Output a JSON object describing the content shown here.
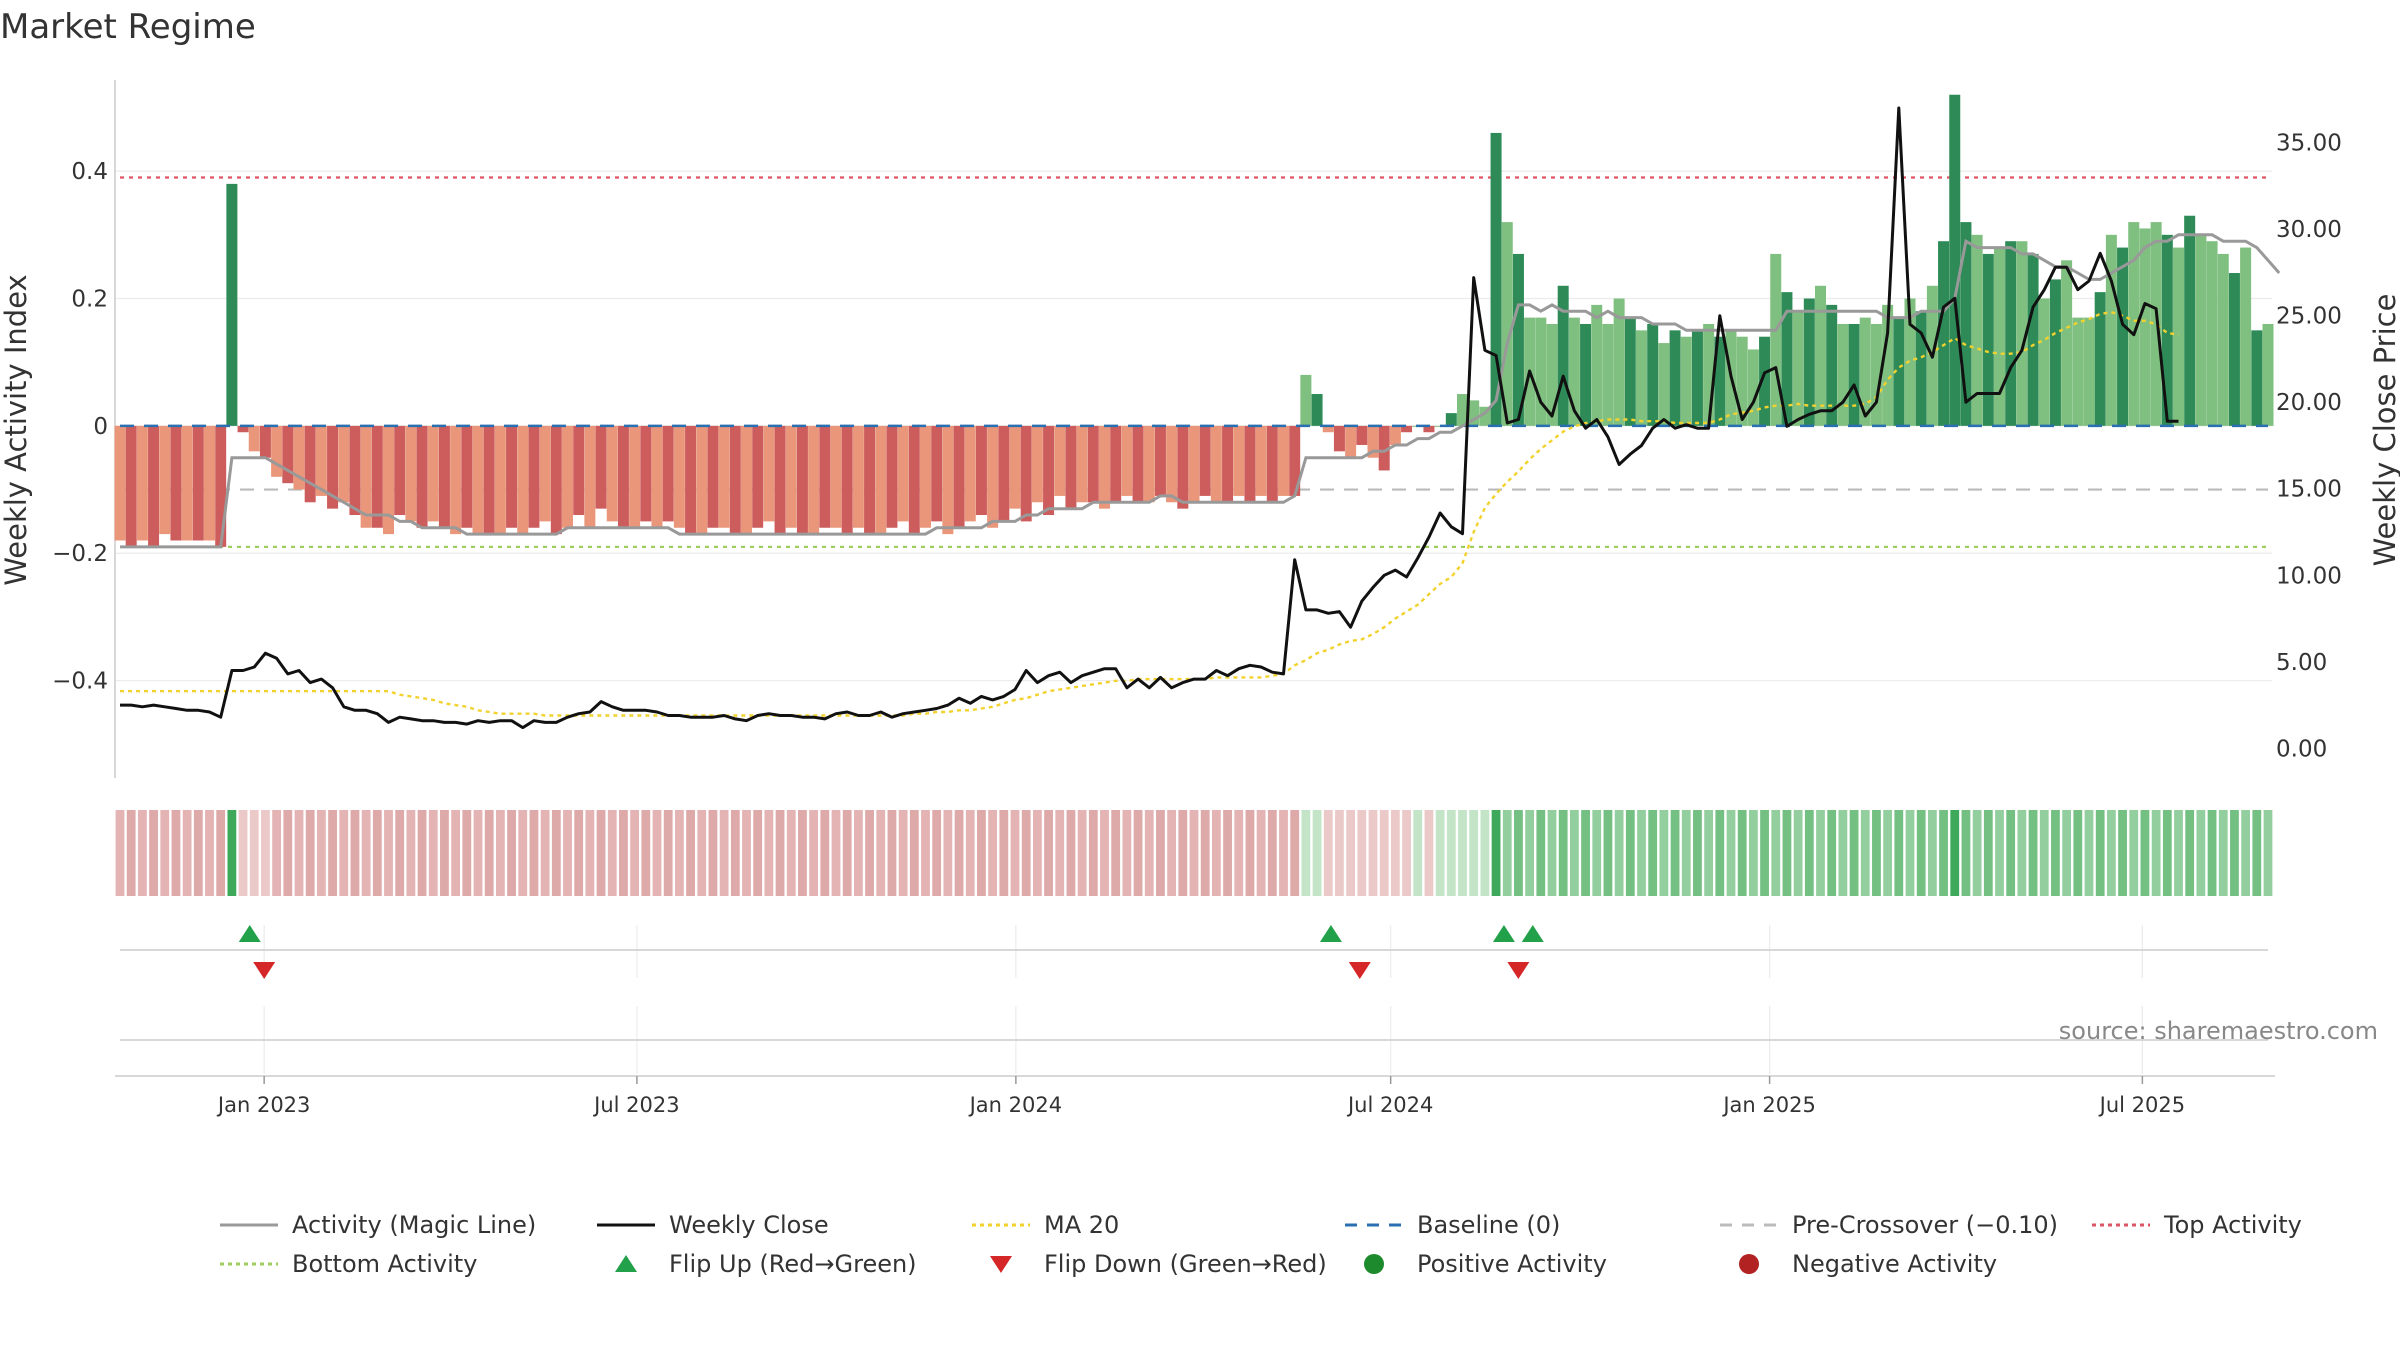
{
  "chart_data": {
    "type": "bar",
    "title": "Market Regime",
    "y_left_label": "Weekly Activity Index",
    "y_right_label": "Weekly Close Price",
    "y_left_ticks": [
      0.4,
      0.2,
      0,
      -0.2,
      -0.4
    ],
    "y_left_tick_labels": [
      "0.4",
      "0.2",
      "0",
      "−0.2",
      "−0.4"
    ],
    "y_left_range": [
      -0.52,
      0.54
    ],
    "y_right_ticks": [
      0,
      5,
      10,
      15,
      20,
      25,
      30,
      35
    ],
    "y_right_tick_labels": [
      "0.00",
      "5.00",
      "10.00",
      "15.00",
      "20.00",
      "25.00",
      "30.00",
      "35.00"
    ],
    "y_right_range": [
      -0.5,
      38.5
    ],
    "x_ticks": [
      "Jan 2023",
      "Jul 2023",
      "Jan 2024",
      "Jul 2024",
      "Jan 2025",
      "Jul 2025"
    ],
    "x_tick_dates": [
      "2023-01-01",
      "2023-07-01",
      "2024-01-01",
      "2024-07-01",
      "2025-01-01",
      "2025-07-01"
    ],
    "weekly_dates": {
      "first": "2022-10-23",
      "last": "2025-08-31",
      "step": "weekly"
    },
    "reference_lines": {
      "baseline": 0,
      "pre_crossover": -0.1,
      "top_activity": 0.39,
      "bottom_activity": -0.19
    },
    "activity_index": [
      -0.18,
      -0.19,
      -0.18,
      -0.19,
      -0.17,
      -0.18,
      -0.18,
      -0.18,
      -0.18,
      -0.19,
      0.38,
      -0.01,
      -0.04,
      -0.05,
      -0.08,
      -0.09,
      -0.1,
      -0.12,
      -0.11,
      -0.13,
      -0.12,
      -0.14,
      -0.16,
      -0.16,
      -0.17,
      -0.14,
      -0.15,
      -0.16,
      -0.15,
      -0.16,
      -0.17,
      -0.16,
      -0.17,
      -0.17,
      -0.17,
      -0.16,
      -0.17,
      -0.16,
      -0.15,
      -0.17,
      -0.16,
      -0.14,
      -0.16,
      -0.13,
      -0.15,
      -0.16,
      -0.16,
      -0.15,
      -0.16,
      -0.15,
      -0.16,
      -0.17,
      -0.17,
      -0.16,
      -0.16,
      -0.17,
      -0.17,
      -0.16,
      -0.15,
      -0.17,
      -0.16,
      -0.17,
      -0.17,
      -0.16,
      -0.16,
      -0.17,
      -0.16,
      -0.17,
      -0.17,
      -0.16,
      -0.15,
      -0.17,
      -0.16,
      -0.15,
      -0.17,
      -0.16,
      -0.15,
      -0.14,
      -0.16,
      -0.15,
      -0.13,
      -0.15,
      -0.12,
      -0.14,
      -0.11,
      -0.13,
      -0.12,
      -0.12,
      -0.13,
      -0.12,
      -0.11,
      -0.12,
      -0.12,
      -0.11,
      -0.12,
      -0.13,
      -0.12,
      -0.11,
      -0.12,
      -0.12,
      -0.11,
      -0.12,
      -0.11,
      -0.12,
      -0.11,
      -0.11,
      0.08,
      0.05,
      -0.01,
      -0.04,
      -0.05,
      -0.03,
      -0.05,
      -0.07,
      -0.03,
      -0.01,
      0.0,
      -0.01,
      0.0,
      0.02,
      0.05,
      0.04,
      0.03,
      0.46,
      0.32,
      0.27,
      0.17,
      0.17,
      0.16,
      0.22,
      0.17,
      0.16,
      0.19,
      0.16,
      0.2,
      0.17,
      0.15,
      0.16,
      0.13,
      0.15,
      0.14,
      0.15,
      0.16,
      0.14,
      0.15,
      0.14,
      0.12,
      0.14,
      0.27,
      0.21,
      0.18,
      0.2,
      0.22,
      0.19,
      0.16,
      0.16,
      0.17,
      0.16,
      0.19,
      0.17,
      0.2,
      0.18,
      0.22,
      0.29,
      0.52,
      0.32,
      0.3,
      0.27,
      0.28,
      0.29,
      0.29,
      0.27,
      0.2,
      0.23,
      0.26,
      0.17,
      0.17,
      0.21,
      0.3,
      0.28,
      0.32,
      0.31,
      0.32,
      0.3,
      0.28,
      0.33,
      0.3,
      0.29,
      0.27,
      0.24,
      0.28,
      0.15,
      0.16
    ],
    "magic_line": [
      -0.19,
      -0.19,
      -0.19,
      -0.19,
      -0.19,
      -0.19,
      -0.19,
      -0.19,
      -0.19,
      -0.19,
      -0.05,
      -0.05,
      -0.05,
      -0.05,
      -0.06,
      -0.07,
      -0.08,
      -0.09,
      -0.1,
      -0.11,
      -0.12,
      -0.13,
      -0.14,
      -0.14,
      -0.14,
      -0.15,
      -0.15,
      -0.16,
      -0.16,
      -0.16,
      -0.16,
      -0.17,
      -0.17,
      -0.17,
      -0.17,
      -0.17,
      -0.17,
      -0.17,
      -0.17,
      -0.17,
      -0.16,
      -0.16,
      -0.16,
      -0.16,
      -0.16,
      -0.16,
      -0.16,
      -0.16,
      -0.16,
      -0.16,
      -0.17,
      -0.17,
      -0.17,
      -0.17,
      -0.17,
      -0.17,
      -0.17,
      -0.17,
      -0.17,
      -0.17,
      -0.17,
      -0.17,
      -0.17,
      -0.17,
      -0.17,
      -0.17,
      -0.17,
      -0.17,
      -0.17,
      -0.17,
      -0.17,
      -0.17,
      -0.17,
      -0.16,
      -0.16,
      -0.16,
      -0.16,
      -0.16,
      -0.15,
      -0.15,
      -0.15,
      -0.14,
      -0.14,
      -0.13,
      -0.13,
      -0.13,
      -0.13,
      -0.12,
      -0.12,
      -0.12,
      -0.12,
      -0.12,
      -0.12,
      -0.11,
      -0.11,
      -0.12,
      -0.12,
      -0.12,
      -0.12,
      -0.12,
      -0.12,
      -0.12,
      -0.12,
      -0.12,
      -0.12,
      -0.11,
      -0.05,
      -0.05,
      -0.05,
      -0.05,
      -0.05,
      -0.05,
      -0.04,
      -0.04,
      -0.03,
      -0.03,
      -0.02,
      -0.02,
      -0.01,
      -0.01,
      0.0,
      0.01,
      0.02,
      0.04,
      0.13,
      0.19,
      0.19,
      0.18,
      0.19,
      0.18,
      0.18,
      0.18,
      0.17,
      0.18,
      0.17,
      0.17,
      0.17,
      0.16,
      0.16,
      0.16,
      0.15,
      0.15,
      0.15,
      0.15,
      0.15,
      0.15,
      0.15,
      0.15,
      0.15,
      0.18,
      0.18,
      0.18,
      0.18,
      0.18,
      0.18,
      0.18,
      0.18,
      0.18,
      0.17,
      0.17,
      0.17,
      0.18,
      0.18,
      0.18,
      0.2,
      0.29,
      0.28,
      0.28,
      0.28,
      0.28,
      0.27,
      0.27,
      0.26,
      0.25,
      0.25,
      0.24,
      0.23,
      0.23,
      0.24,
      0.25,
      0.26,
      0.28,
      0.29,
      0.29,
      0.3,
      0.3,
      0.3,
      0.3,
      0.29,
      0.29,
      0.29,
      0.28,
      0.26,
      0.24
    ],
    "weekly_close": [
      2.5,
      2.5,
      2.4,
      2.5,
      2.4,
      2.3,
      2.2,
      2.2,
      2.1,
      1.8,
      4.5,
      4.5,
      4.7,
      5.5,
      5.2,
      4.3,
      4.5,
      3.8,
      4.0,
      3.5,
      2.4,
      2.2,
      2.2,
      2.0,
      1.5,
      1.8,
      1.7,
      1.6,
      1.6,
      1.5,
      1.5,
      1.4,
      1.6,
      1.5,
      1.6,
      1.6,
      1.2,
      1.6,
      1.5,
      1.5,
      1.8,
      2.0,
      2.1,
      2.7,
      2.4,
      2.2,
      2.2,
      2.2,
      2.1,
      1.9,
      1.9,
      1.8,
      1.8,
      1.8,
      1.9,
      1.7,
      1.6,
      1.9,
      2.0,
      1.9,
      1.9,
      1.8,
      1.8,
      1.7,
      2.0,
      2.1,
      1.9,
      1.9,
      2.1,
      1.8,
      2.0,
      2.1,
      2.2,
      2.3,
      2.5,
      2.9,
      2.6,
      3.0,
      2.8,
      3.0,
      3.4,
      4.5,
      3.8,
      4.2,
      4.4,
      3.8,
      4.2,
      4.4,
      4.6,
      4.6,
      3.5,
      4.0,
      3.5,
      4.1,
      3.5,
      3.8,
      4.0,
      4.0,
      4.5,
      4.2,
      4.6,
      4.8,
      4.7,
      4.4,
      4.3,
      10.9,
      8.0,
      8.0,
      7.8,
      7.9,
      7.0,
      8.5,
      9.3,
      10.0,
      10.3,
      9.9,
      11.0,
      12.2,
      13.6,
      12.8,
      12.4,
      27.2,
      23.0,
      22.7,
      18.8,
      19.0,
      21.8,
      20.0,
      19.2,
      21.5,
      19.5,
      18.5,
      19.0,
      18.0,
      16.4,
      17.0,
      17.5,
      18.5,
      19.0,
      18.5,
      18.7,
      18.5,
      18.5,
      25.0,
      21.5,
      19.0,
      20.0,
      21.7,
      22.0,
      18.6,
      19.0,
      19.3,
      19.5,
      19.5,
      20.0,
      21.0,
      19.2,
      20.0,
      24.0,
      37.0,
      24.5,
      24.0,
      22.6,
      25.5,
      26.0,
      20.0,
      20.5,
      20.5,
      20.5,
      22.0,
      23.0,
      25.5,
      26.5,
      27.8,
      27.8,
      26.5,
      27.0,
      28.6,
      27.0,
      24.5,
      23.9,
      25.7,
      25.4,
      18.9,
      18.9
    ],
    "ma20": [
      3.3,
      3.3,
      3.3,
      3.3,
      3.3,
      3.3,
      3.3,
      3.3,
      3.3,
      3.3,
      3.3,
      3.3,
      3.3,
      3.3,
      3.3,
      3.3,
      3.3,
      3.3,
      3.3,
      3.3,
      3.3,
      3.3,
      3.3,
      3.3,
      3.3,
      3.1,
      3.0,
      2.9,
      2.8,
      2.6,
      2.5,
      2.4,
      2.2,
      2.1,
      2.0,
      2.0,
      2.0,
      2.0,
      1.9,
      1.9,
      1.9,
      1.9,
      1.9,
      1.9,
      1.9,
      1.9,
      1.9,
      1.9,
      1.9,
      1.9,
      1.9,
      1.9,
      1.9,
      1.9,
      1.9,
      1.9,
      1.9,
      1.9,
      1.9,
      1.9,
      1.9,
      1.9,
      1.9,
      1.9,
      1.9,
      1.9,
      1.9,
      1.9,
      1.9,
      1.9,
      1.9,
      2.0,
      2.0,
      2.1,
      2.1,
      2.2,
      2.2,
      2.3,
      2.4,
      2.6,
      2.8,
      2.9,
      3.1,
      3.3,
      3.4,
      3.5,
      3.6,
      3.7,
      3.8,
      3.9,
      3.9,
      4.0,
      4.0,
      4.0,
      4.0,
      4.0,
      4.0,
      4.0,
      4.1,
      4.1,
      4.1,
      4.1,
      4.1,
      4.2,
      4.3,
      4.8,
      5.1,
      5.5,
      5.7,
      6.0,
      6.2,
      6.3,
      6.6,
      7.0,
      7.5,
      7.9,
      8.3,
      8.9,
      9.5,
      9.9,
      10.7,
      12.5,
      13.9,
      14.7,
      15.4,
      16.0,
      16.7,
      17.3,
      17.8,
      18.3,
      18.6,
      18.8,
      18.9,
      19.0,
      19.0,
      19.0,
      18.9,
      18.9,
      18.9,
      18.8,
      18.8,
      18.8,
      18.8,
      19.0,
      19.3,
      19.4,
      19.5,
      19.7,
      19.8,
      19.8,
      19.9,
      19.8,
      19.8,
      19.8,
      19.8,
      19.8,
      19.9,
      20.3,
      21.3,
      22.0,
      22.4,
      22.6,
      22.9,
      23.3,
      23.7,
      23.3,
      23.1,
      22.9,
      22.8,
      22.8,
      22.9,
      23.3,
      23.6,
      24.0,
      24.3,
      24.6,
      24.8,
      25.1,
      25.2,
      25.0,
      24.7,
      24.7,
      24.5,
      24.0,
      23.9
    ],
    "flip_up_dates": [
      "2022-12-25",
      "2024-06-02",
      "2024-08-25",
      "2024-09-08"
    ],
    "flip_down_dates": [
      "2023-01-01",
      "2024-06-16",
      "2024-09-01"
    ],
    "legend": [
      {
        "label": "Activity (Magic Line)",
        "kind": "line",
        "color": "#999999",
        "dash": ""
      },
      {
        "label": "Weekly Close",
        "kind": "line",
        "color": "#111111",
        "dash": ""
      },
      {
        "label": "MA 20",
        "kind": "line",
        "color": "#f2d22e",
        "dash": "4,4"
      },
      {
        "label": "Baseline (0)",
        "kind": "line",
        "color": "#2a6fb0",
        "dash": "12,10"
      },
      {
        "label": "Pre-Crossover (−0.10)",
        "kind": "line",
        "color": "#bbbbbb",
        "dash": "12,10"
      },
      {
        "label": "Top Activity",
        "kind": "line",
        "color": "#e05565",
        "dash": "4,4"
      },
      {
        "label": "Bottom Activity",
        "kind": "line",
        "color": "#9ecf5e",
        "dash": "4,4"
      },
      {
        "label": "Flip Up (Red→Green)",
        "kind": "tri-up",
        "color": "#22a04a",
        "dash": ""
      },
      {
        "label": "Flip Down (Green→Red)",
        "kind": "tri-down",
        "color": "#d62728",
        "dash": ""
      },
      {
        "label": "Positive Activity",
        "kind": "dot",
        "color": "#1d8a2e",
        "dash": ""
      },
      {
        "label": "Negative Activity",
        "kind": "dot",
        "color": "#b22222",
        "dash": ""
      }
    ],
    "source": "source: sharemaestro.com",
    "colors": {
      "pos_strong": "#2e8b57",
      "pos_light": "#7fbf7f",
      "neg_strong": "#cd5c5c",
      "neg_light": "#e9967a",
      "close": "#111111",
      "magic": "#999999",
      "ma20": "#f2d22e",
      "baseline": "#2a6fb0",
      "pre_crossover": "#bbbbbb",
      "top": "#e05565",
      "bottom": "#9ecf5e"
    }
  }
}
